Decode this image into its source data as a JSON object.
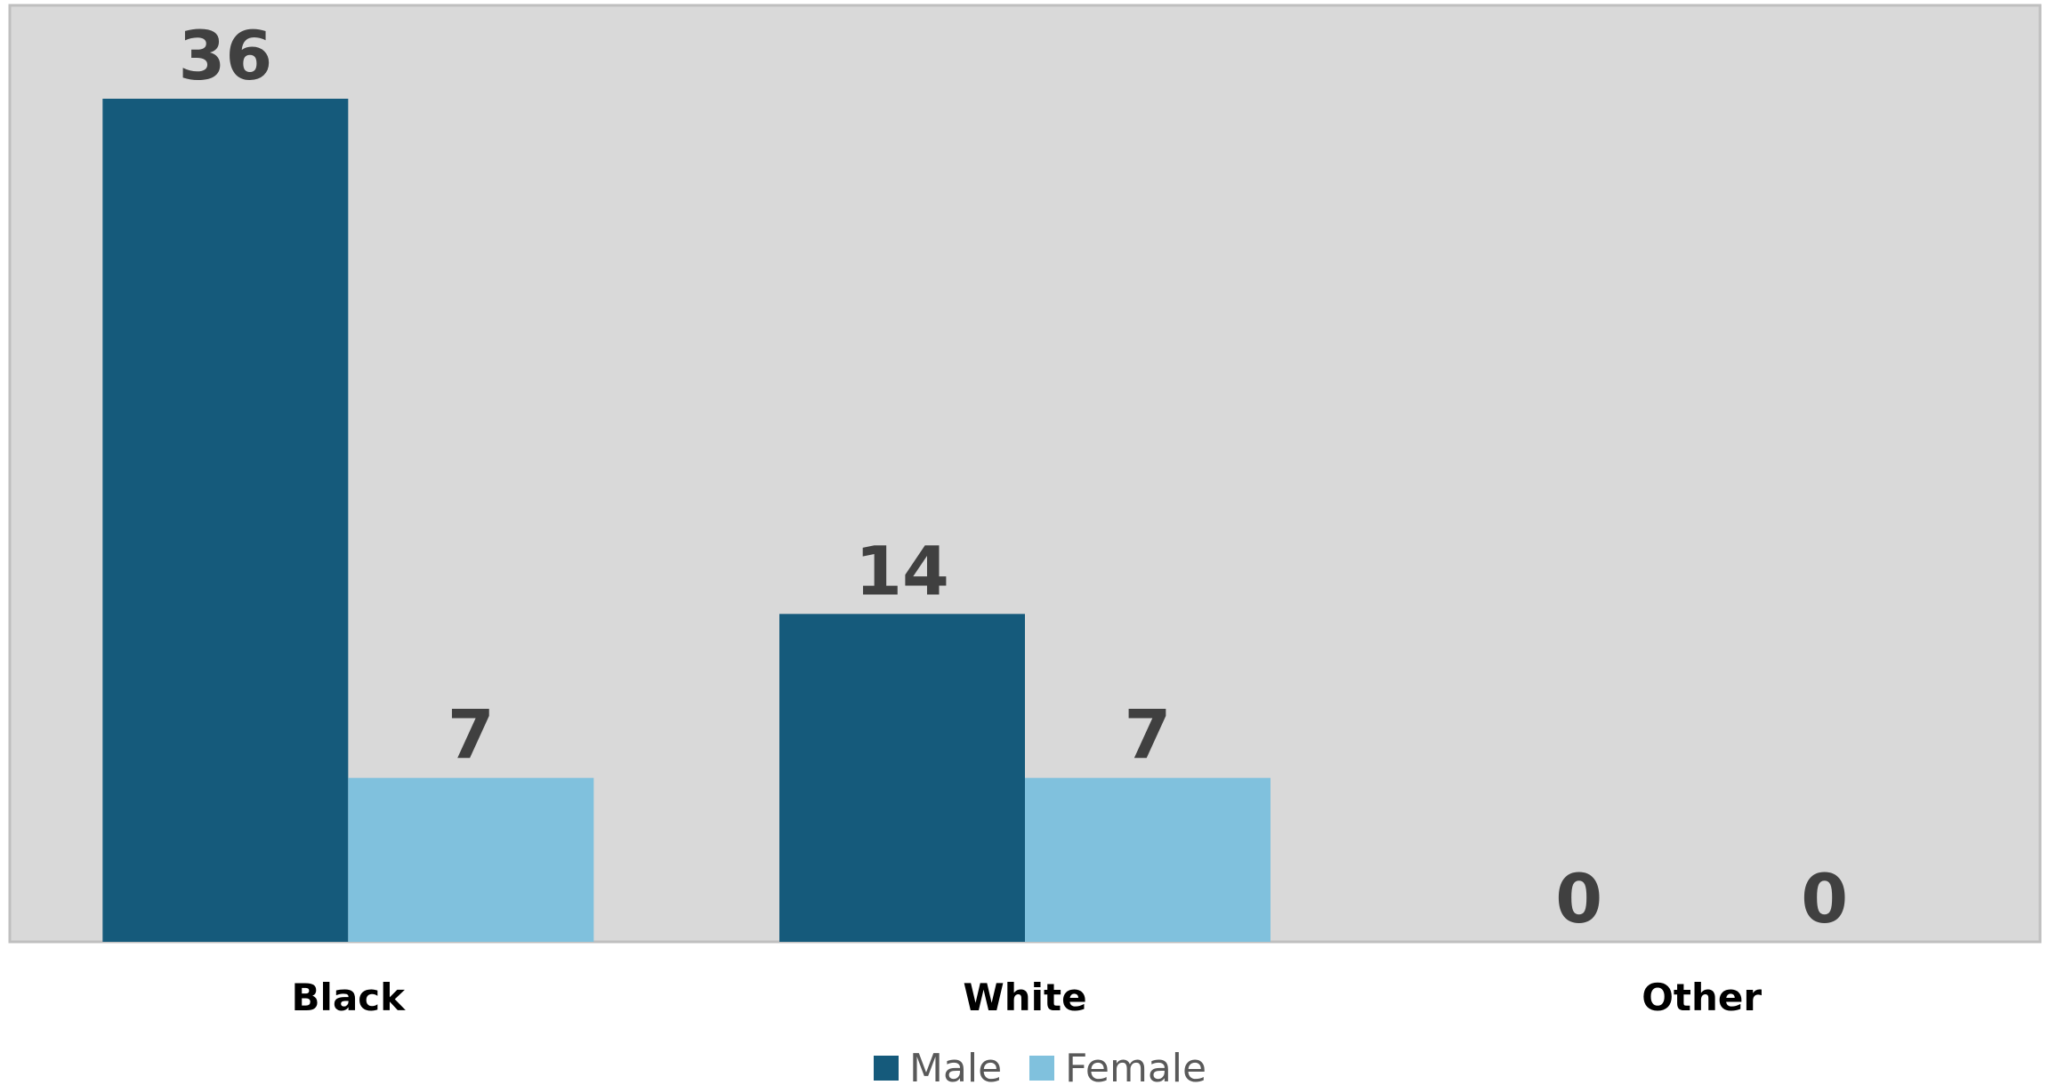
{
  "chart_data": {
    "type": "bar",
    "categories": [
      "Black",
      "White",
      "Other"
    ],
    "series": [
      {
        "name": "Male",
        "values": [
          36,
          14,
          0
        ],
        "color": "#155a7b"
      },
      {
        "name": "Female",
        "values": [
          7,
          7,
          0
        ],
        "color": "#80c1dd"
      }
    ],
    "ylim": [
      0,
      36
    ],
    "grid": false,
    "data_labels": true,
    "legend_position": "bottom",
    "plot_background": "#d9d9d9",
    "plot_border_color": "#bfbfbf"
  }
}
